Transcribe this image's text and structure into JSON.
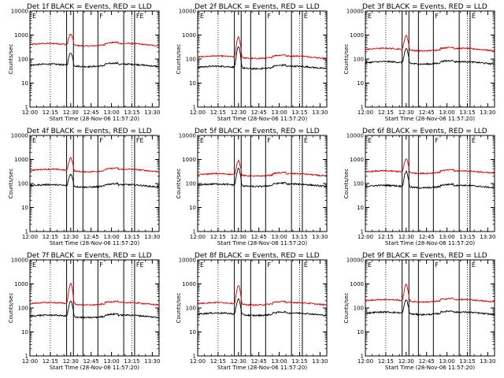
{
  "figure": {
    "xticks": [
      "12:00",
      "12:15",
      "12:30",
      "12:45",
      "13:00",
      "13:15",
      "13:30"
    ],
    "yticks": [
      "1",
      "10",
      "100",
      "1000",
      "10000"
    ],
    "ylabel": "Counts/sec",
    "xlabel": "Start Time (28-Nov-06 11:57:20)",
    "colors": {
      "events": "#000000",
      "lld": "#dd0000",
      "axes": "#000000"
    },
    "panels": [
      {
        "title": "Det 1f BLACK = Events, RED = LLD",
        "events_base": 55,
        "lld_base": 400,
        "events_peak": 170,
        "lld_peak": 1000,
        "markers": [
          "E",
          "F",
          "FE"
        ]
      },
      {
        "title": "Det 2f BLACK = Events, RED = LLD",
        "events_base": 45,
        "lld_base": 120,
        "events_peak": 300,
        "lld_peak": 800,
        "markers": [
          "E",
          "F",
          "E"
        ]
      },
      {
        "title": "Det 3f BLACK = Events, RED = LLD",
        "events_base": 70,
        "lld_base": 250,
        "events_peak": 250,
        "lld_peak": 900,
        "markers": [
          "E",
          "F",
          "E"
        ]
      },
      {
        "title": "Det 4f BLACK = Events, RED = LLD",
        "events_base": 80,
        "lld_base": 350,
        "events_peak": 220,
        "lld_peak": 1100,
        "markers": [
          "E",
          "F",
          "FE"
        ]
      },
      {
        "title": "Det 5f BLACK = Events, RED = LLD",
        "events_base": 85,
        "lld_base": 230,
        "events_peak": 400,
        "lld_peak": 850,
        "markers": [
          "E",
          "F",
          "E"
        ]
      },
      {
        "title": "Det 6f BLACK = Events, RED = LLD",
        "events_base": 75,
        "lld_base": 300,
        "events_peak": 300,
        "lld_peak": 1000,
        "markers": [
          "E",
          "F",
          "E"
        ]
      },
      {
        "title": "Det 7f BLACK = Events, RED = LLD",
        "events_base": 45,
        "lld_base": 150,
        "events_peak": 180,
        "lld_peak": 1000,
        "markers": [
          "E",
          "F",
          "FE"
        ]
      },
      {
        "title": "Det 8f BLACK = Events, RED = LLD",
        "events_base": 55,
        "lld_base": 150,
        "events_peak": 220,
        "lld_peak": 800,
        "markers": [
          "E",
          "F",
          "E"
        ]
      },
      {
        "title": "Det 9f BLACK = Events, RED = LLD",
        "events_base": 60,
        "lld_base": 200,
        "events_peak": 200,
        "lld_peak": 900,
        "markers": [
          "E",
          "F",
          "E"
        ]
      }
    ]
  },
  "chart_data": {
    "type": "line",
    "x_unit": "time (HH:MM), 28-Nov-06",
    "x_range": [
      "12:00",
      "13:35"
    ],
    "ylim": [
      1,
      10000
    ],
    "y_scale": "log",
    "series": [
      {
        "name": "BLACK = Events"
      },
      {
        "name": "RED = LLD"
      }
    ],
    "dotted_lines_at": [
      "12:15",
      "13:15"
    ],
    "solid_lines_at": [
      "12:27",
      "12:32",
      "12:39",
      "12:50",
      "13:09",
      "13:17"
    ],
    "peak_time": "12:30"
  }
}
